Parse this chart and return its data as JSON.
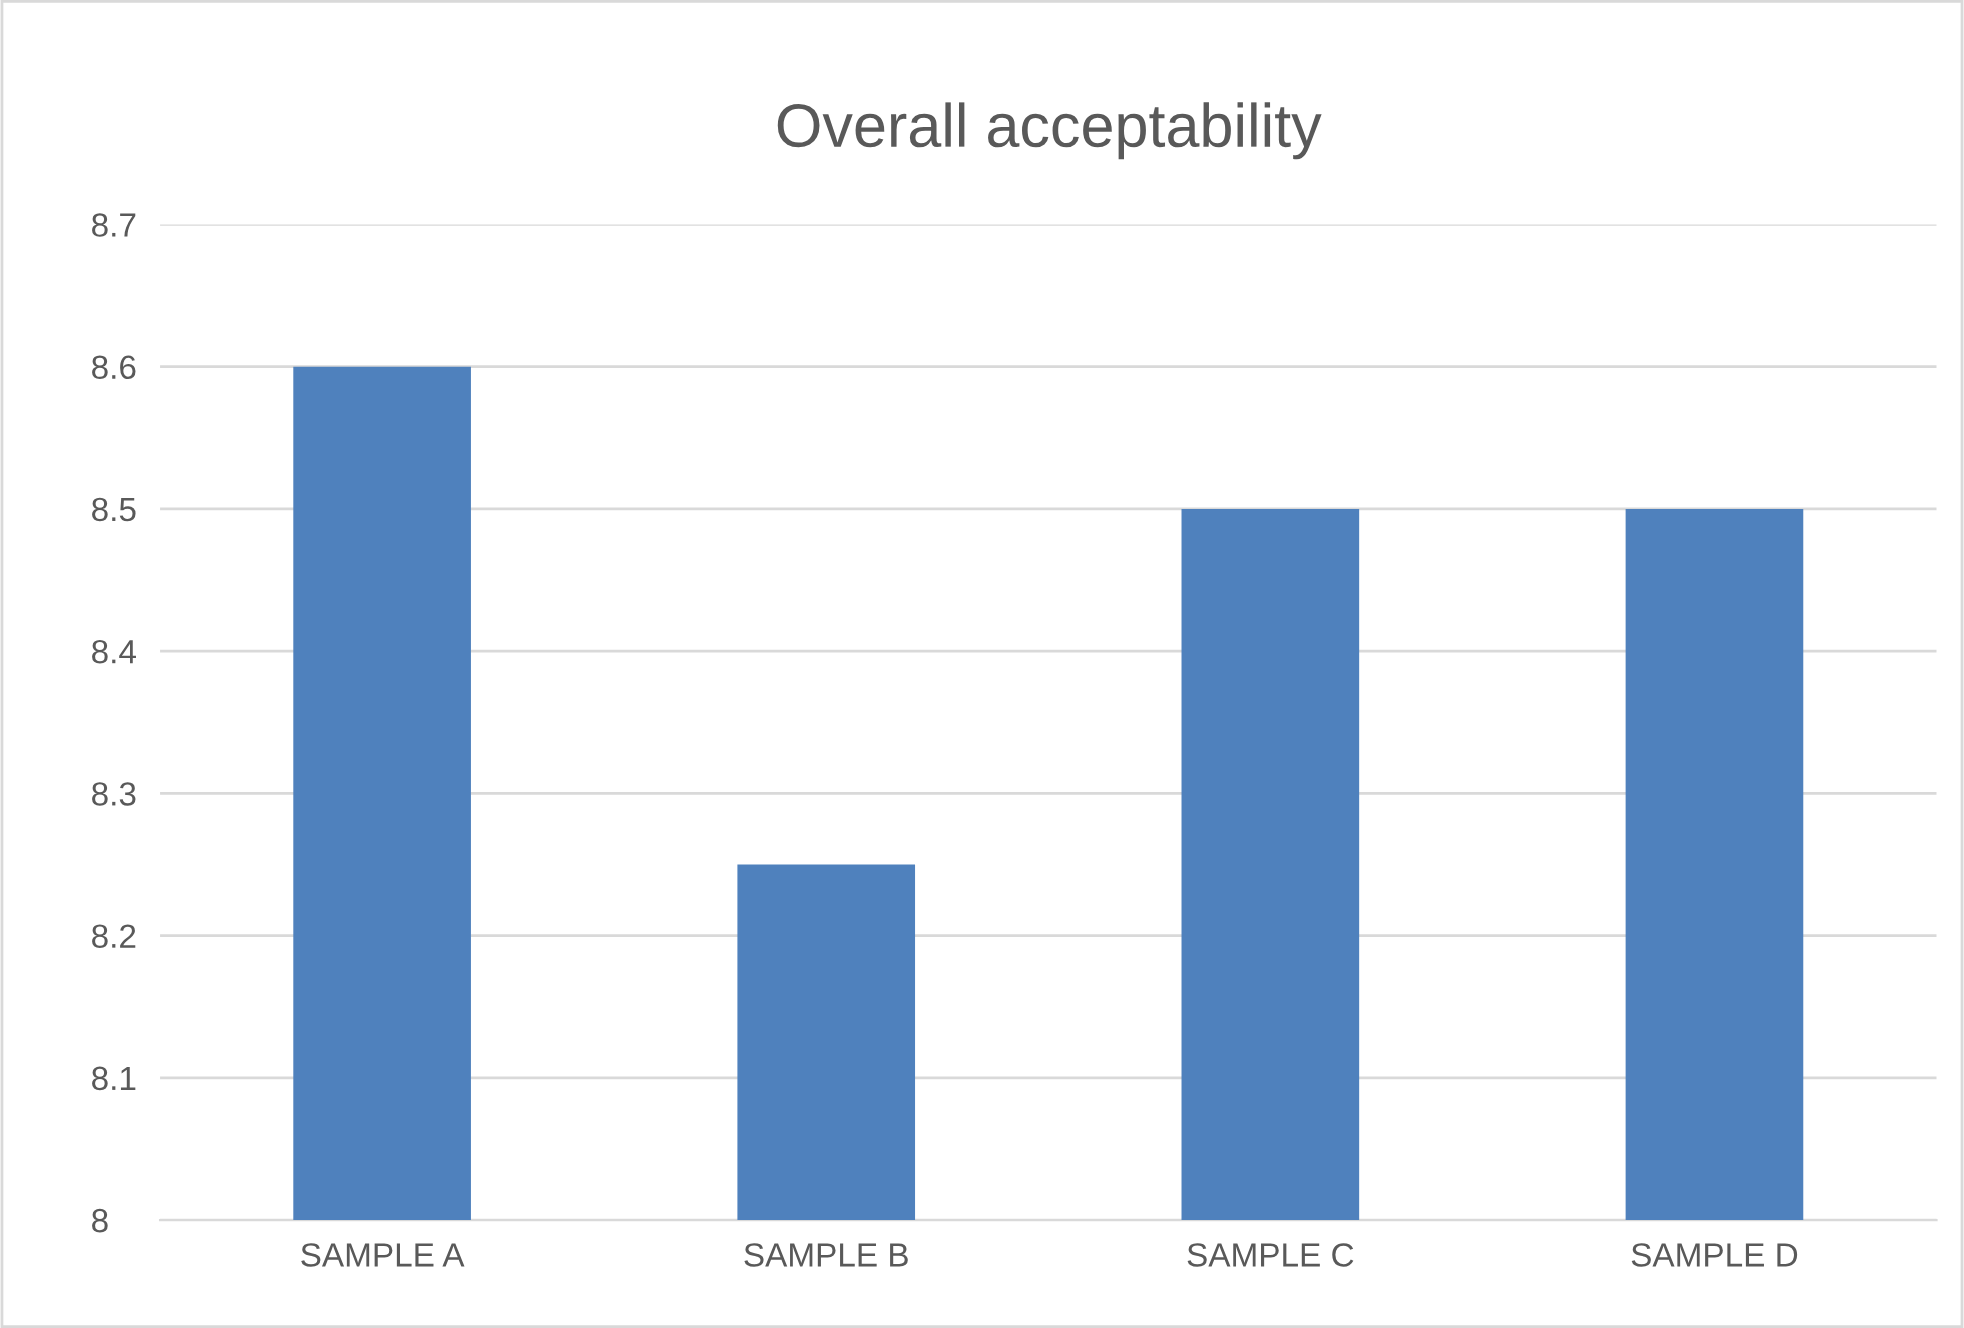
{
  "chart_data": {
    "type": "bar",
    "title": "Overall acceptability",
    "categories": [
      "SAMPLE A",
      "SAMPLE B",
      "SAMPLE C",
      "SAMPLE D"
    ],
    "values": [
      8.6,
      8.25,
      8.5,
      8.5
    ],
    "color": "#4f81bd",
    "ylim": [
      8,
      8.7
    ],
    "yticks": [
      8,
      8.1,
      8.2,
      8.3,
      8.4,
      8.5,
      8.6,
      8.7
    ],
    "grid": "y"
  }
}
